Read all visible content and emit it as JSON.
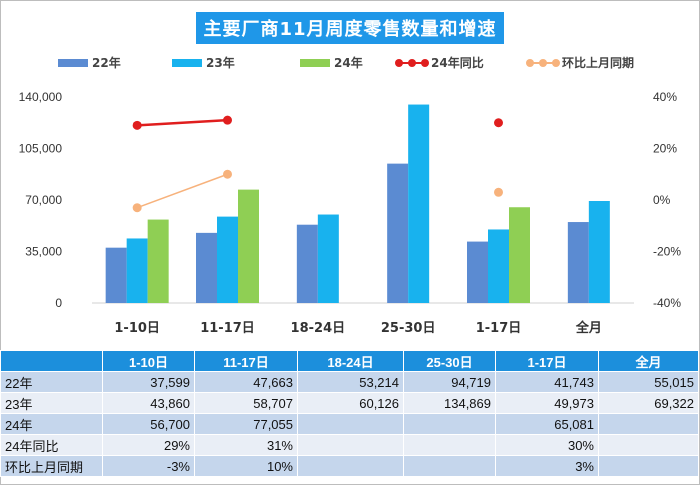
{
  "title": "主要厂商11月周度零售数量和增速",
  "colors": {
    "s22": "#5b8bd2",
    "s23": "#18b2ee",
    "s24": "#8fcf54",
    "yoy": "#e01e1e",
    "mom": "#f7b27c",
    "header": "#1c8fdc"
  },
  "chart_data": {
    "type": "bar",
    "title": "主要厂商11月周度零售数量和增速",
    "categories": [
      "1-10日",
      "11-17日",
      "18-24日",
      "25-30日",
      "1-17日",
      "全月"
    ],
    "ylim": [
      0,
      140000
    ],
    "yticks": [
      "0",
      "35,000",
      "70,000",
      "105,000",
      "140,000"
    ],
    "yticks_values": [
      0,
      35000,
      70000,
      105000,
      140000
    ],
    "y2lim": [
      -40,
      40
    ],
    "y2ticks": [
      "-40%",
      "-20%",
      "0%",
      "20%",
      "40%"
    ],
    "y2ticks_values": [
      -40,
      -20,
      0,
      20,
      40
    ],
    "legend_position": "top",
    "series": [
      {
        "name": "22年",
        "type": "bar",
        "values": [
          37599,
          47663,
          53214,
          94719,
          41743,
          55015
        ]
      },
      {
        "name": "23年",
        "type": "bar",
        "values": [
          43860,
          58707,
          60126,
          134869,
          49973,
          69322
        ]
      },
      {
        "name": "24年",
        "type": "bar",
        "values": [
          56700,
          77055,
          null,
          null,
          65081,
          null
        ]
      },
      {
        "name": "24年同比",
        "type": "line",
        "axis": "right",
        "values": [
          29,
          31,
          null,
          null,
          30,
          null
        ]
      },
      {
        "name": "环比上月同期",
        "type": "line",
        "axis": "right",
        "values": [
          -3,
          10,
          null,
          null,
          3,
          null
        ]
      }
    ]
  },
  "table": {
    "header": [
      "",
      "1-10日",
      "11-17日",
      "18-24日",
      "25-30日",
      "1-17日",
      "全月"
    ],
    "rows": [
      {
        "label": "22年",
        "cells": [
          "37,599",
          "47,663",
          "53,214",
          "94,719",
          "41,743",
          "55,015"
        ]
      },
      {
        "label": "23年",
        "cells": [
          "43,860",
          "58,707",
          "60,126",
          "134,869",
          "49,973",
          "69,322"
        ]
      },
      {
        "label": "24年",
        "cells": [
          "56,700",
          "77,055",
          "",
          "",
          "65,081",
          ""
        ]
      },
      {
        "label": "24年同比",
        "cells": [
          "29%",
          "31%",
          "",
          "",
          "30%",
          ""
        ]
      },
      {
        "label": "环比上月同期",
        "cells": [
          "-3%",
          "10%",
          "",
          "",
          "3%",
          ""
        ]
      }
    ]
  }
}
